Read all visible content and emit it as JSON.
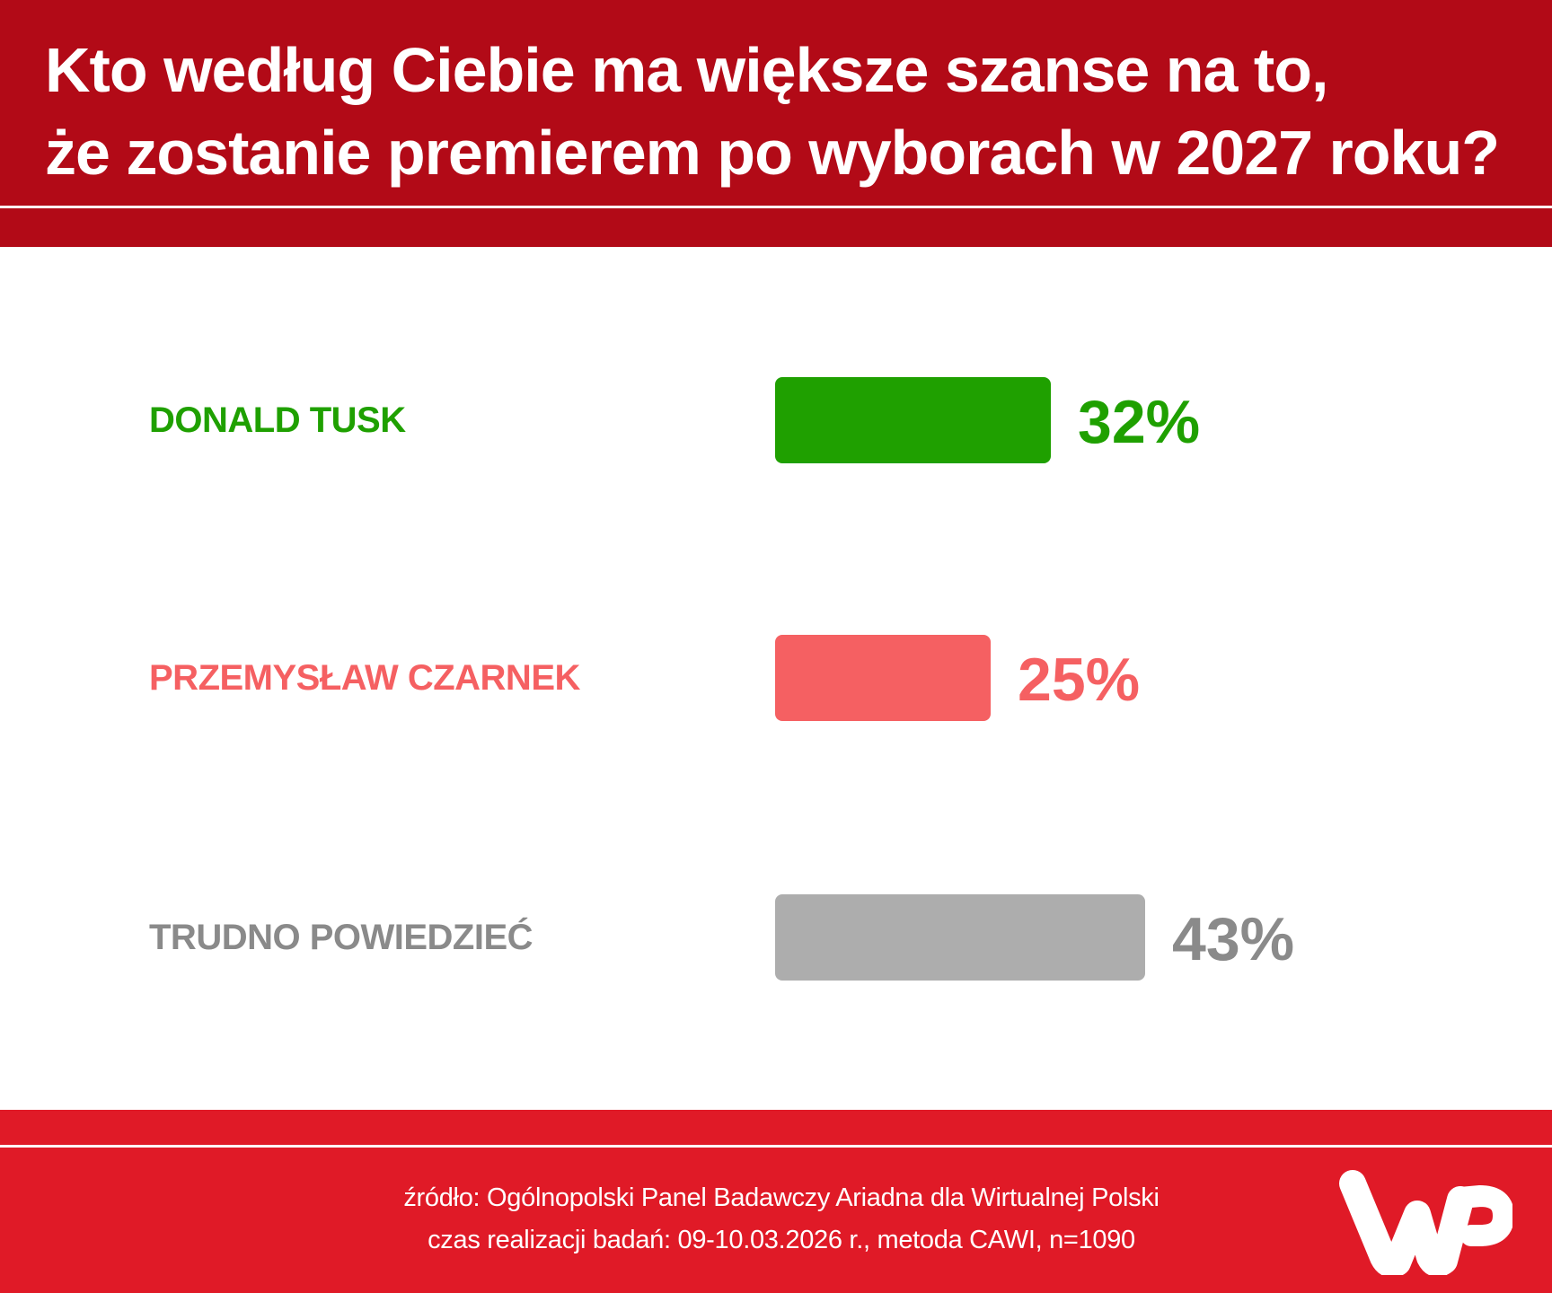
{
  "header": {
    "title_line1": "Kto według Ciebie ma większe szanse na to,",
    "title_line2": "że zostanie premierem po wyborach w 2027 roku?"
  },
  "rows": [
    {
      "label": "DONALD TUSK",
      "value": 32,
      "value_label": "32%",
      "color": "#1FA000",
      "text_color": "#1FA000"
    },
    {
      "label": "PRZEMYSŁAW CZARNEK",
      "value": 25,
      "value_label": "25%",
      "color": "#F56062",
      "text_color": "#F56062"
    },
    {
      "label": "TRUDNO POWIEDZIEĆ",
      "value": 43,
      "value_label": "43%",
      "color": "#ADADAD",
      "text_color": "#8A8A8A"
    }
  ],
  "footer": {
    "source": "źródło: Ogólnopolski Panel Badawczy Ariadna dla Wirtualnej Polski",
    "method": "czas realizacji badań: 09-10.03.2026 r., metoda CAWI, n=1090",
    "logo": "wp-logo"
  },
  "colors": {
    "header_bg": "#B20A17",
    "footer_bg": "#E01A27"
  },
  "chart_data": {
    "type": "bar",
    "orientation": "horizontal",
    "title": "Kto według Ciebie ma większe szanse na to, że zostanie premierem po wyborach w 2027 roku?",
    "categories": [
      "DONALD TUSK",
      "PRZEMYSŁAW CZARNEK",
      "TRUDNO POWIEDZIEĆ"
    ],
    "values": [
      32,
      25,
      43
    ],
    "unit": "%",
    "colors": [
      "#1FA000",
      "#F56062",
      "#ADADAD"
    ],
    "xlabel": "",
    "ylabel": "",
    "grid": false,
    "legend": "none",
    "source": "źródło: Ogólnopolski Panel Badawczy Ariadna dla Wirtualnej Polski",
    "note": "czas realizacji badań: 09-10.03.2026 r., metoda CAWI, n=1090"
  }
}
